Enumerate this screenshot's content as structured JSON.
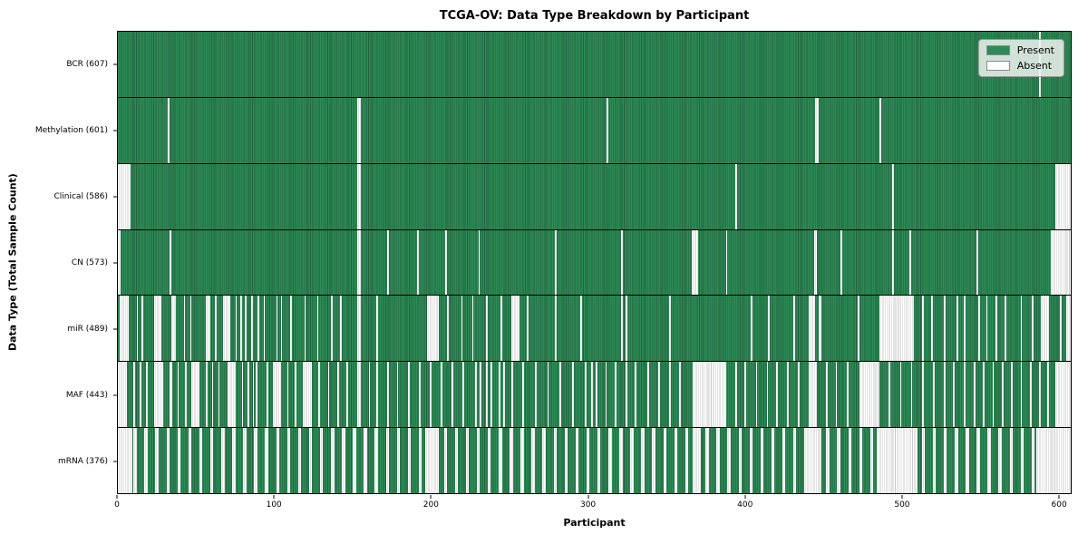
{
  "chart_data": {
    "type": "heatmap",
    "title": "TCGA-OV: Data Type Breakdown by Participant",
    "xlabel": "Participant",
    "ylabel": "Data Type (Total Sample Count)",
    "x_ticks": [
      0,
      100,
      200,
      300,
      400,
      500,
      600
    ],
    "x_range": [
      0,
      608
    ],
    "n_participants": 608,
    "grid": false,
    "legend_position": "upper right",
    "legend": [
      {
        "label": "Present",
        "color": "#2e8b57"
      },
      {
        "label": "Absent",
        "color": "#ffffff"
      }
    ],
    "colors": {
      "present_fill": "#2e8b57",
      "present_edge": "#20633f",
      "absent_fill": "#ffffff",
      "absent_edge": "#c9c9c9",
      "separator": "#000000"
    },
    "rows": [
      {
        "name": "BCR",
        "label": "BCR (607)",
        "present_count": 607,
        "absent_segments": [
          [
            588,
            589
          ]
        ]
      },
      {
        "name": "Methylation",
        "label": "Methylation (601)",
        "present_count": 601,
        "absent_segments": [
          [
            32,
            33
          ],
          [
            153,
            155
          ],
          [
            312,
            313
          ],
          [
            445,
            447
          ],
          [
            486,
            487
          ]
        ]
      },
      {
        "name": "Clinical",
        "label": "Clinical (586)",
        "present_count": 586,
        "absent_segments": [
          [
            0,
            8
          ],
          [
            153,
            155
          ],
          [
            394,
            395
          ],
          [
            494,
            495
          ],
          [
            598,
            608
          ]
        ]
      },
      {
        "name": "CN",
        "label": "CN (573)",
        "present_count": 573,
        "absent_segments": [
          [
            0,
            2
          ],
          [
            33,
            34
          ],
          [
            153,
            155
          ],
          [
            172,
            173
          ],
          [
            191,
            192
          ],
          [
            209,
            210
          ],
          [
            230,
            231
          ],
          [
            279,
            280
          ],
          [
            321,
            322
          ],
          [
            366,
            370
          ],
          [
            388,
            389
          ],
          [
            444,
            446
          ],
          [
            461,
            462
          ],
          [
            494,
            495
          ],
          [
            505,
            506
          ],
          [
            548,
            549
          ],
          [
            595,
            608
          ]
        ]
      },
      {
        "name": "miR",
        "label": "miR (489)",
        "present_count": 489,
        "absent_segments": [
          [
            1,
            7
          ],
          [
            12,
            13
          ],
          [
            15,
            16
          ],
          [
            23,
            28
          ],
          [
            34,
            37
          ],
          [
            42,
            43
          ],
          [
            46,
            47
          ],
          [
            56,
            59
          ],
          [
            62,
            63
          ],
          [
            67,
            72
          ],
          [
            75,
            76
          ],
          [
            78,
            79
          ],
          [
            81,
            82
          ],
          [
            85,
            86
          ],
          [
            89,
            90
          ],
          [
            93,
            94
          ],
          [
            101,
            102
          ],
          [
            104,
            105
          ],
          [
            110,
            111
          ],
          [
            119,
            120
          ],
          [
            127,
            128
          ],
          [
            136,
            137
          ],
          [
            142,
            143
          ],
          [
            153,
            155
          ],
          [
            165,
            166
          ],
          [
            197,
            205
          ],
          [
            210,
            211
          ],
          [
            219,
            220
          ],
          [
            226,
            227
          ],
          [
            235,
            236
          ],
          [
            244,
            245
          ],
          [
            251,
            256
          ],
          [
            261,
            262
          ],
          [
            279,
            280
          ],
          [
            295,
            296
          ],
          [
            321,
            322
          ],
          [
            324,
            325
          ],
          [
            352,
            353
          ],
          [
            404,
            405
          ],
          [
            415,
            416
          ],
          [
            431,
            432
          ],
          [
            441,
            445
          ],
          [
            447,
            449
          ],
          [
            472,
            473
          ],
          [
            486,
            508
          ],
          [
            513,
            514
          ],
          [
            519,
            520
          ],
          [
            527,
            528
          ],
          [
            535,
            536
          ],
          [
            540,
            541
          ],
          [
            549,
            550
          ],
          [
            554,
            555
          ],
          [
            560,
            561
          ],
          [
            566,
            567
          ],
          [
            576,
            577
          ],
          [
            583,
            584
          ],
          [
            589,
            594
          ],
          [
            601,
            602
          ],
          [
            605,
            608
          ]
        ]
      },
      {
        "name": "MAF",
        "label": "MAF (443)",
        "present_count": 443,
        "absent_segments": [
          [
            0,
            6
          ],
          [
            10,
            11
          ],
          [
            14,
            15
          ],
          [
            18,
            19
          ],
          [
            23,
            29
          ],
          [
            33,
            35
          ],
          [
            38,
            39
          ],
          [
            43,
            44
          ],
          [
            47,
            52
          ],
          [
            56,
            57
          ],
          [
            60,
            61
          ],
          [
            64,
            65
          ],
          [
            70,
            75
          ],
          [
            79,
            80
          ],
          [
            83,
            84
          ],
          [
            86,
            87
          ],
          [
            88,
            89
          ],
          [
            95,
            96
          ],
          [
            99,
            104
          ],
          [
            108,
            109
          ],
          [
            113,
            114
          ],
          [
            118,
            124
          ],
          [
            128,
            129
          ],
          [
            134,
            135
          ],
          [
            140,
            141
          ],
          [
            146,
            147
          ],
          [
            153,
            155
          ],
          [
            160,
            161
          ],
          [
            165,
            166
          ],
          [
            172,
            173
          ],
          [
            178,
            179
          ],
          [
            185,
            186
          ],
          [
            192,
            193
          ],
          [
            199,
            200
          ],
          [
            206,
            207
          ],
          [
            213,
            214
          ],
          [
            220,
            221
          ],
          [
            228,
            229
          ],
          [
            231,
            232
          ],
          [
            235,
            236
          ],
          [
            238,
            239
          ],
          [
            243,
            244
          ],
          [
            246,
            247
          ],
          [
            251,
            252
          ],
          [
            258,
            259
          ],
          [
            266,
            267
          ],
          [
            274,
            275
          ],
          [
            282,
            283
          ],
          [
            290,
            291
          ],
          [
            298,
            299
          ],
          [
            302,
            303
          ],
          [
            305,
            306
          ],
          [
            311,
            312
          ],
          [
            317,
            318
          ],
          [
            324,
            325
          ],
          [
            330,
            331
          ],
          [
            338,
            339
          ],
          [
            345,
            346
          ],
          [
            352,
            353
          ],
          [
            358,
            359
          ],
          [
            367,
            388
          ],
          [
            394,
            395
          ],
          [
            400,
            401
          ],
          [
            407,
            408
          ],
          [
            414,
            415
          ],
          [
            420,
            421
          ],
          [
            427,
            428
          ],
          [
            434,
            435
          ],
          [
            441,
            446
          ],
          [
            452,
            453
          ],
          [
            458,
            459
          ],
          [
            465,
            466
          ],
          [
            473,
            486
          ],
          [
            492,
            493
          ],
          [
            499,
            500
          ],
          [
            506,
            507
          ],
          [
            513,
            514
          ],
          [
            520,
            521
          ],
          [
            527,
            528
          ],
          [
            533,
            534
          ],
          [
            540,
            541
          ],
          [
            546,
            547
          ],
          [
            552,
            553
          ],
          [
            558,
            559
          ],
          [
            564,
            565
          ],
          [
            570,
            571
          ],
          [
            576,
            577
          ],
          [
            582,
            583
          ],
          [
            588,
            589
          ],
          [
            593,
            594
          ],
          [
            598,
            608
          ]
        ]
      },
      {
        "name": "mRNA",
        "label": "mRNA (376)",
        "present_count": 376,
        "absent_segments": [
          [
            0,
            9
          ],
          [
            10,
            12
          ],
          [
            17,
            19
          ],
          [
            24,
            26
          ],
          [
            31,
            33
          ],
          [
            38,
            40
          ],
          [
            45,
            47
          ],
          [
            52,
            54
          ],
          [
            59,
            61
          ],
          [
            66,
            68
          ],
          [
            73,
            75
          ],
          [
            80,
            82
          ],
          [
            87,
            89
          ],
          [
            94,
            96
          ],
          [
            101,
            103
          ],
          [
            108,
            110
          ],
          [
            115,
            117
          ],
          [
            122,
            124
          ],
          [
            129,
            131
          ],
          [
            136,
            138
          ],
          [
            143,
            145
          ],
          [
            150,
            152
          ],
          [
            157,
            159
          ],
          [
            164,
            166
          ],
          [
            171,
            173
          ],
          [
            178,
            180
          ],
          [
            185,
            187
          ],
          [
            192,
            194
          ],
          [
            196,
            205
          ],
          [
            208,
            210
          ],
          [
            215,
            217
          ],
          [
            222,
            224
          ],
          [
            229,
            231
          ],
          [
            236,
            238
          ],
          [
            243,
            245
          ],
          [
            250,
            252
          ],
          [
            257,
            259
          ],
          [
            264,
            266
          ],
          [
            271,
            273
          ],
          [
            278,
            280
          ],
          [
            285,
            287
          ],
          [
            292,
            294
          ],
          [
            299,
            301
          ],
          [
            306,
            308
          ],
          [
            313,
            315
          ],
          [
            320,
            322
          ],
          [
            327,
            329
          ],
          [
            334,
            336
          ],
          [
            341,
            343
          ],
          [
            348,
            350
          ],
          [
            355,
            357
          ],
          [
            362,
            364
          ],
          [
            367,
            372
          ],
          [
            375,
            377
          ],
          [
            382,
            384
          ],
          [
            389,
            391
          ],
          [
            396,
            398
          ],
          [
            403,
            405
          ],
          [
            410,
            412
          ],
          [
            417,
            419
          ],
          [
            424,
            426
          ],
          [
            431,
            433
          ],
          [
            438,
            449
          ],
          [
            452,
            454
          ],
          [
            459,
            461
          ],
          [
            466,
            468
          ],
          [
            473,
            475
          ],
          [
            480,
            482
          ],
          [
            484,
            510
          ],
          [
            513,
            515
          ],
          [
            520,
            522
          ],
          [
            527,
            529
          ],
          [
            534,
            536
          ],
          [
            541,
            543
          ],
          [
            548,
            550
          ],
          [
            555,
            557
          ],
          [
            562,
            564
          ],
          [
            569,
            571
          ],
          [
            576,
            578
          ],
          [
            583,
            585
          ],
          [
            586,
            608
          ]
        ]
      }
    ]
  }
}
